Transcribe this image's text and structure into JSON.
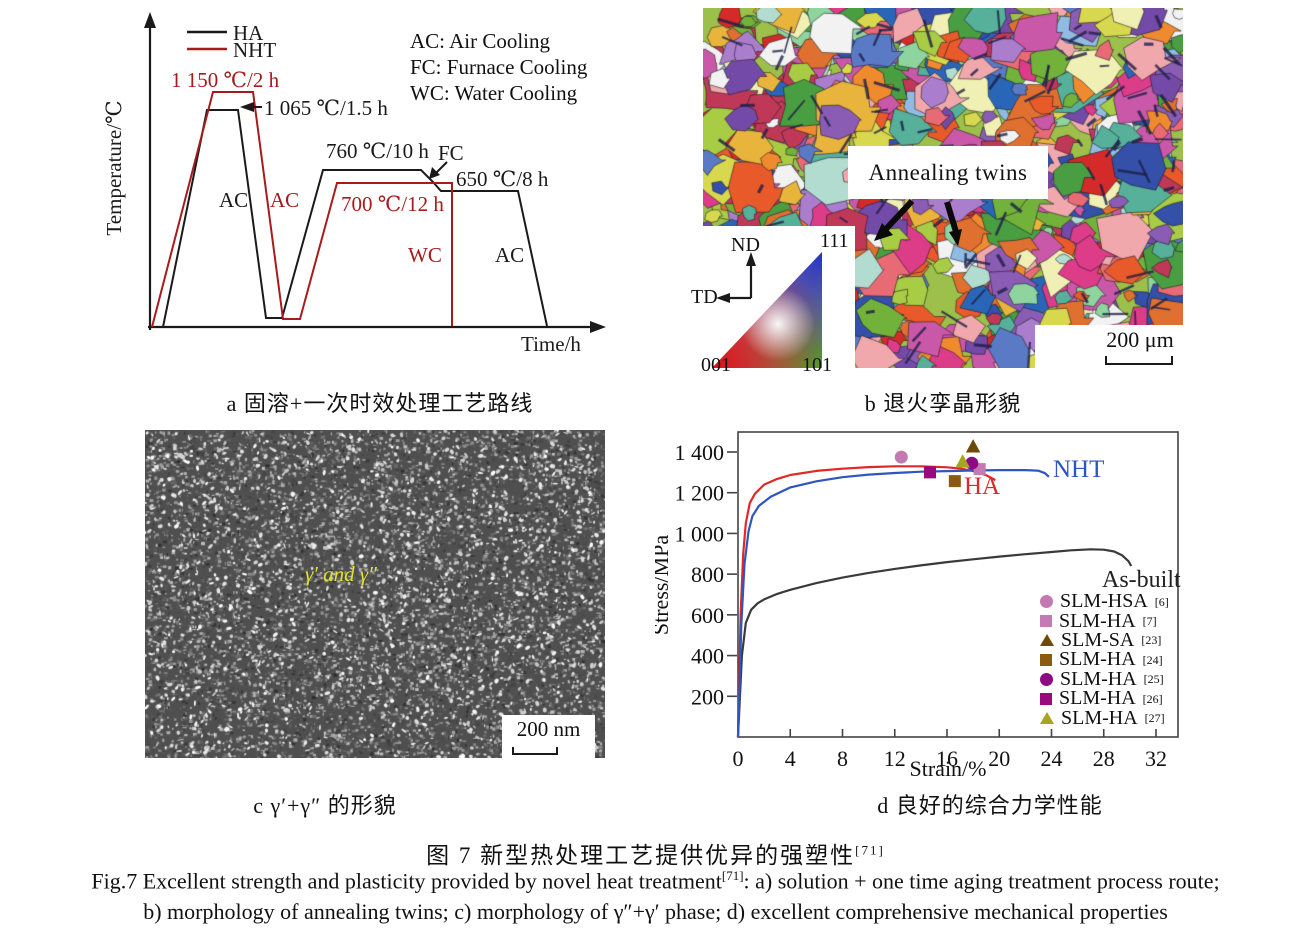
{
  "figure": {
    "panel_a": {
      "caption": "a 固溶+一次时效处理工艺路线",
      "y_axis_label": "Temperature/℃",
      "x_axis_label": "Time/h",
      "legend": [
        {
          "label": "HA",
          "color": "#1a1a1a"
        },
        {
          "label": "NHT",
          "color": "#a61b1b"
        }
      ],
      "cooling_legend": [
        "AC: Air Cooling",
        "FC: Furnace Cooling",
        "WC: Water Cooling"
      ],
      "labels": {
        "nht_solution": "1 150 ℃/2 h",
        "ha_solution": "1 065 ℃/1.5 h",
        "ha_aging_1": "760 ℃/10 h",
        "furnace_cooling": "FC",
        "ha_aging_2": "650 ℃/8 h",
        "nht_aging": "700 ℃/12 h",
        "water_cooling": "WC",
        "air_cooling_ha": "AC",
        "air_cooling_nht": "AC",
        "air_cooling_final": "AC"
      }
    },
    "panel_b": {
      "caption": "b 退火孪晶形貌",
      "annotation": "Annealing twins",
      "scale_bar": "200 μm",
      "ipf_legend": {
        "nd": "ND",
        "td": "TD",
        "corner_111": "111",
        "corner_001": "001",
        "corner_101": "101"
      }
    },
    "panel_c": {
      "caption": "c γ′+γ″ 的形貌",
      "annotation": "γ′ and γ″",
      "annotation_color": "#e2e22a",
      "scale_bar": "200 nm"
    },
    "panel_d": {
      "caption": "d 良好的综合力学性能"
    },
    "caption_zh": "图 7  新型热处理工艺提供优异的强塑性",
    "reference_marker": "[71]",
    "caption_en_1": "Fig.7 Excellent strength and plasticity provided by novel heat treatment",
    "caption_en_1_tail": ": a) solution + one time aging treatment process route;",
    "caption_en_2": "b) morphology of annealing twins; c) morphology of γ″+γ′ phase; d) excellent comprehensive mechanical properties"
  },
  "chart_data": {
    "type": "line+scatter",
    "xlabel": "Strain/%",
    "ylabel": "Stress/MPa",
    "xlim": [
      0,
      33.7
    ],
    "ylim": [
      0,
      1500
    ],
    "xticks": [
      0,
      4,
      8,
      12,
      16,
      20,
      24,
      28,
      32
    ],
    "yticks": [
      200,
      400,
      600,
      800,
      1000,
      1200,
      1400
    ],
    "grid": false,
    "legend_position": "lower right",
    "curves": [
      {
        "name": "As-built",
        "color": "#3a3a3a",
        "points": [
          [
            0,
            0
          ],
          [
            0.3,
            400
          ],
          [
            0.6,
            560
          ],
          [
            1,
            625
          ],
          [
            1.5,
            657
          ],
          [
            2,
            676
          ],
          [
            3,
            703
          ],
          [
            4,
            723
          ],
          [
            6,
            756
          ],
          [
            8,
            783
          ],
          [
            10,
            806
          ],
          [
            12,
            826
          ],
          [
            14,
            843
          ],
          [
            16,
            859
          ],
          [
            18,
            873
          ],
          [
            20,
            886
          ],
          [
            22,
            898
          ],
          [
            24,
            909
          ],
          [
            25.5,
            917
          ],
          [
            27,
            922
          ],
          [
            28,
            920
          ],
          [
            28.8,
            911
          ],
          [
            29.4,
            893
          ],
          [
            29.9,
            863
          ],
          [
            30.1,
            840
          ]
        ]
      },
      {
        "name": "HA",
        "color": "#e02828",
        "points": [
          [
            0,
            0
          ],
          [
            0.2,
            600
          ],
          [
            0.4,
            900
          ],
          [
            0.6,
            1050
          ],
          [
            0.9,
            1150
          ],
          [
            1.3,
            1195
          ],
          [
            2,
            1240
          ],
          [
            3,
            1268
          ],
          [
            4,
            1287
          ],
          [
            6,
            1307
          ],
          [
            8,
            1318
          ],
          [
            10,
            1326
          ],
          [
            12,
            1330
          ],
          [
            14,
            1330
          ],
          [
            16,
            1325
          ],
          [
            17,
            1319
          ],
          [
            18,
            1306
          ],
          [
            19,
            1286
          ],
          [
            19.7,
            1262
          ]
        ]
      },
      {
        "name": "NHT",
        "color": "#2f55c0",
        "points": [
          [
            0,
            0
          ],
          [
            0.25,
            550
          ],
          [
            0.5,
            850
          ],
          [
            0.8,
            1010
          ],
          [
            1.1,
            1085
          ],
          [
            1.6,
            1135
          ],
          [
            2.5,
            1180
          ],
          [
            4,
            1226
          ],
          [
            6,
            1256
          ],
          [
            8,
            1276
          ],
          [
            10,
            1289
          ],
          [
            12,
            1297
          ],
          [
            14,
            1303
          ],
          [
            16,
            1306
          ],
          [
            18,
            1309
          ],
          [
            20,
            1311
          ],
          [
            22,
            1311
          ],
          [
            23,
            1308
          ],
          [
            23.5,
            1296
          ],
          [
            23.8,
            1278
          ]
        ]
      }
    ],
    "scatter": [
      {
        "label": "SLM-HSA",
        "ref": "[6]",
        "marker": "circle",
        "color": "#c27ab0",
        "strain": 12.5,
        "stress": 1375
      },
      {
        "label": "SLM-HA",
        "ref": "[7]",
        "marker": "square",
        "color": "#c47ab2",
        "strain": 18.5,
        "stress": 1316
      },
      {
        "label": "SLM-SA",
        "ref": "[23]",
        "marker": "triangle",
        "color": "#6e4a0a",
        "strain": 18.0,
        "stress": 1424
      },
      {
        "label": "SLM-HA",
        "ref": "[24]",
        "marker": "square",
        "color": "#8a5c10",
        "strain": 16.6,
        "stress": 1257
      },
      {
        "label": "SLM-HA",
        "ref": "[25]",
        "marker": "circle",
        "color": "#8d0a85",
        "strain": 17.9,
        "stress": 1345
      },
      {
        "label": "SLM-HA",
        "ref": "[26]",
        "marker": "square",
        "color": "#990a7e",
        "strain": 14.7,
        "stress": 1300
      },
      {
        "label": "SLM-HA",
        "ref": "[27]",
        "marker": "triangle",
        "color": "#a8a421",
        "strain": 17.2,
        "stress": 1350
      }
    ]
  }
}
